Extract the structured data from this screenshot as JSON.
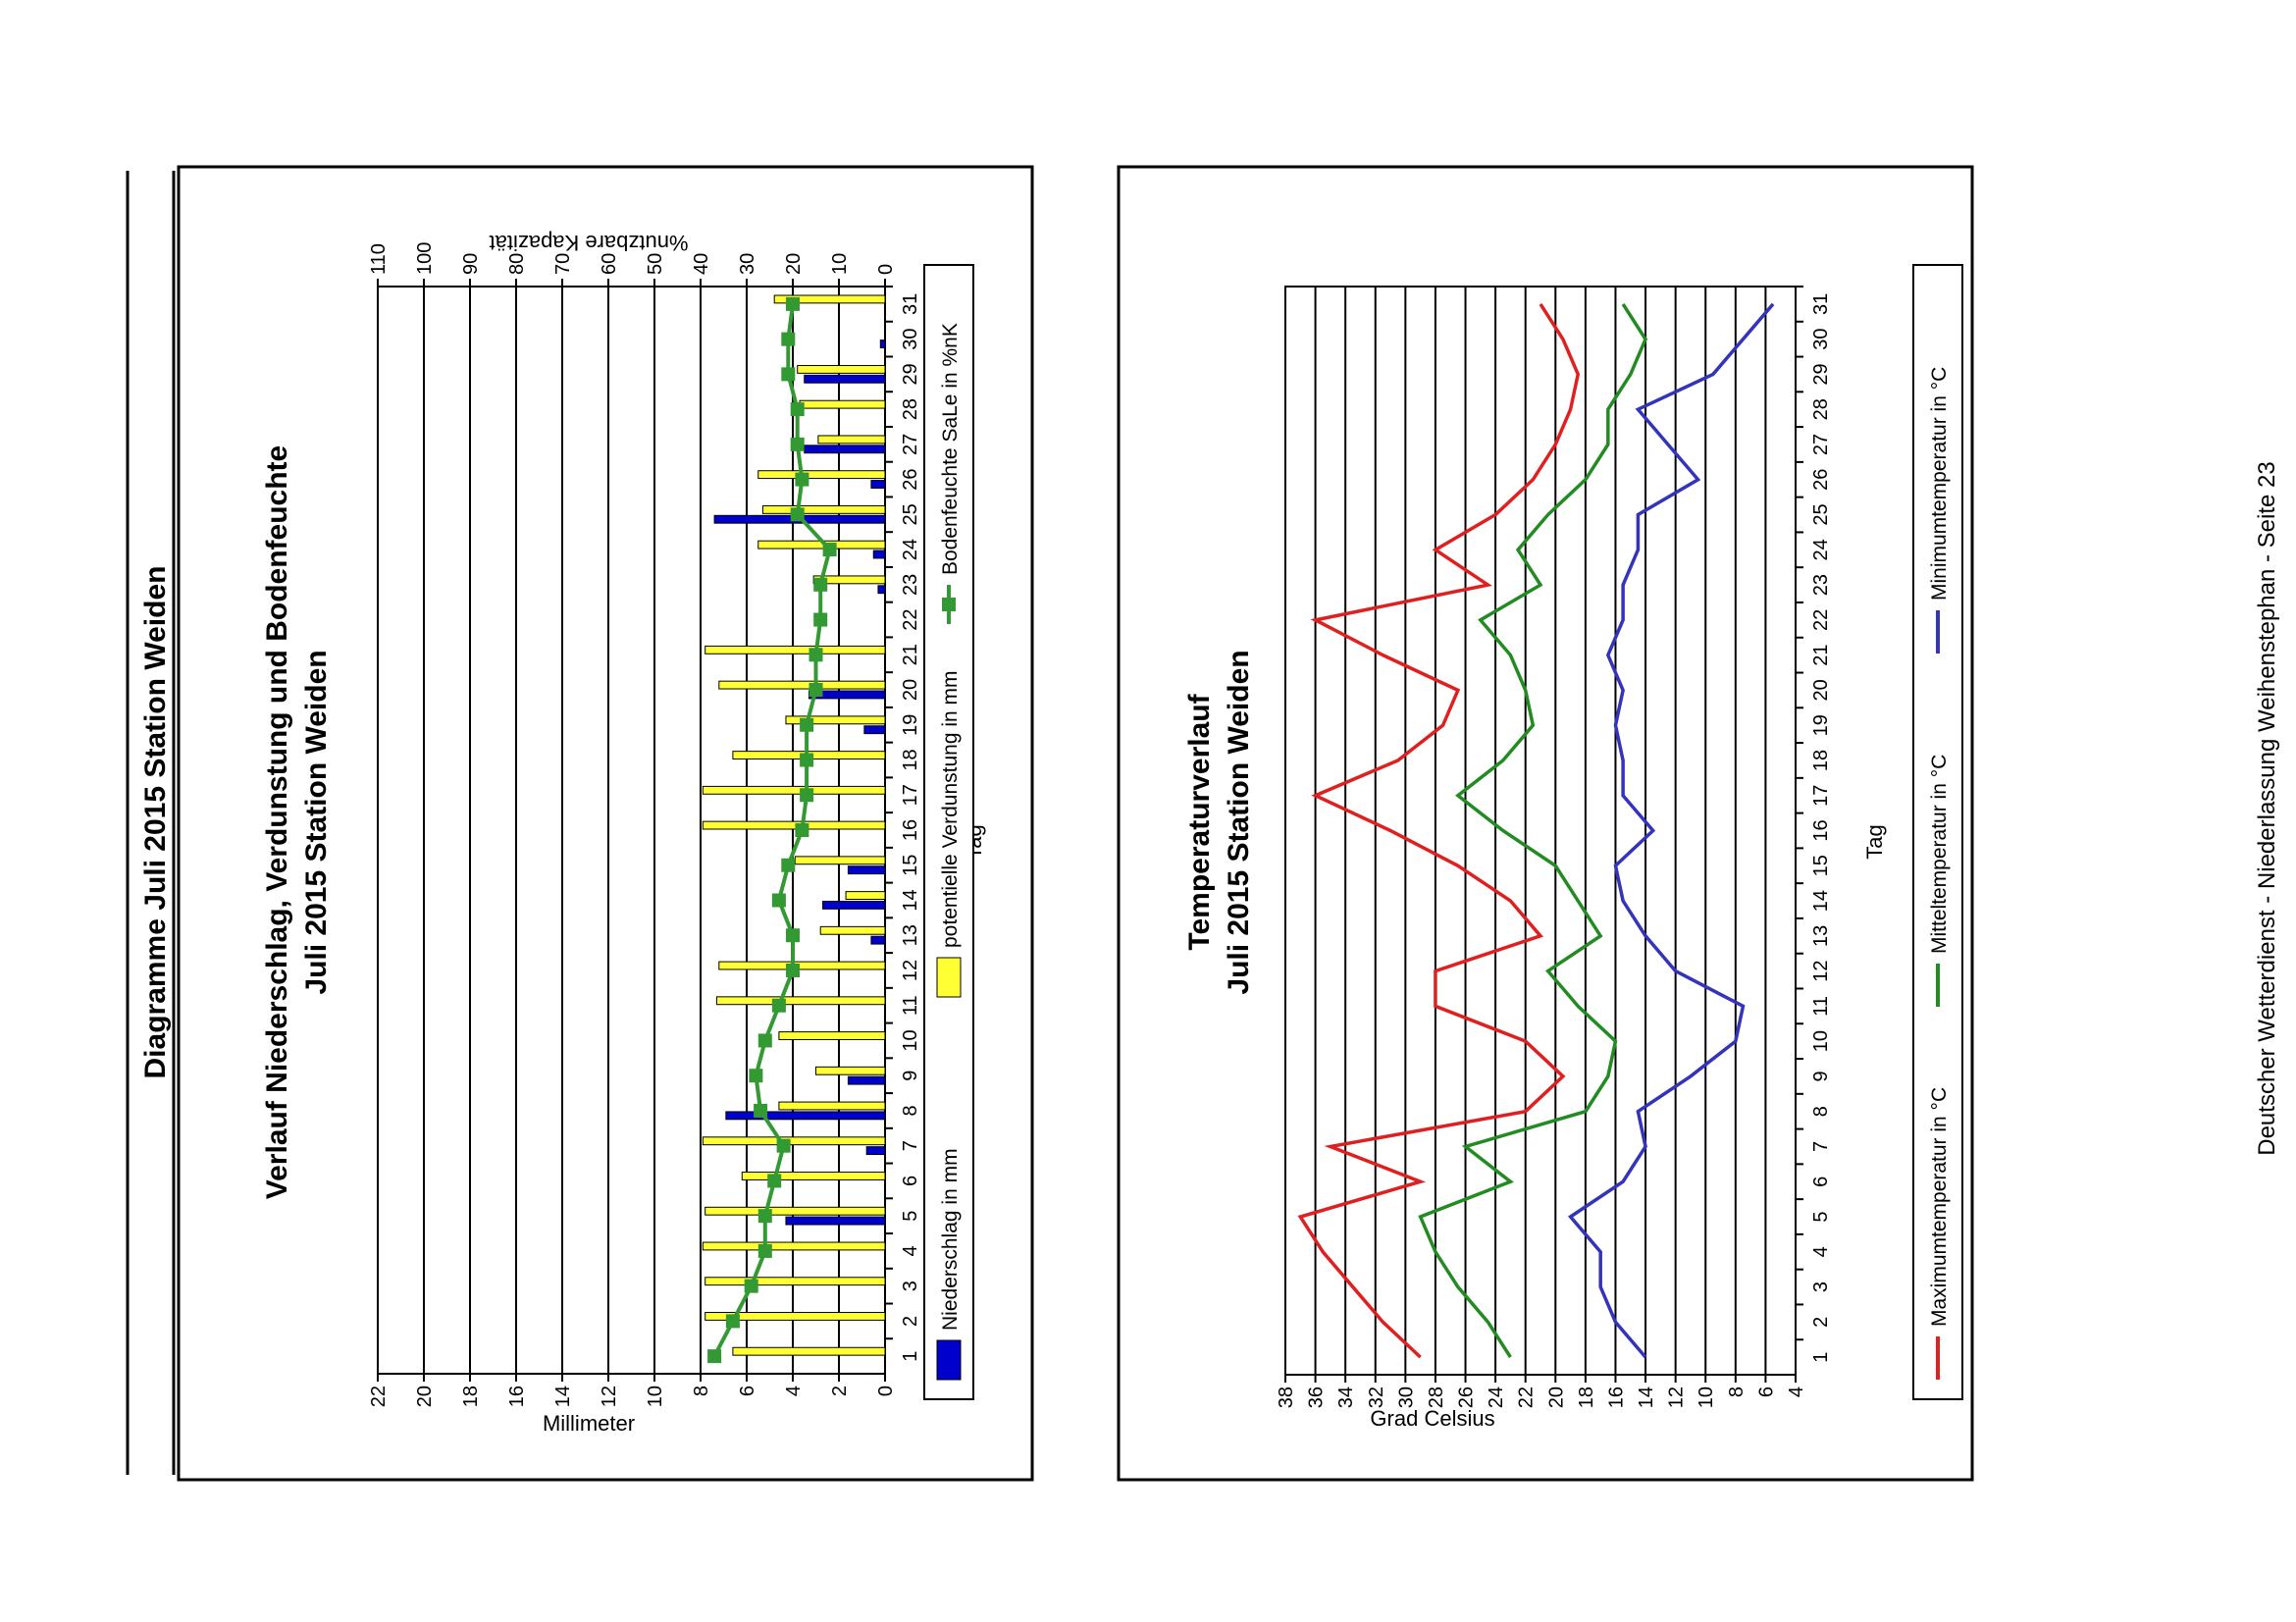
{
  "page": {
    "title": "Diagramme Juli 2015 Station Weiden",
    "footer": "Deutscher Wetterdienst - Niederlassung Weihenstephan - Seite 23"
  },
  "chart_data": [
    {
      "type": "bar",
      "title": "Verlauf Niederschlag, Verdunstung und Bodenfeuchte",
      "subtitle": "Juli 2015 Station Weiden",
      "xlabel": "Tag",
      "ylabel": "Millimeter",
      "y2label": "%nutzbare Kapazität",
      "ylim": [
        0,
        22
      ],
      "y2lim": [
        0,
        110
      ],
      "yticks": [
        "0",
        "2",
        "4",
        "6",
        "8",
        "10",
        "12",
        "14",
        "16",
        "18",
        "20",
        "22"
      ],
      "y2ticks": [
        "0",
        "10",
        "20",
        "30",
        "40",
        "50",
        "60",
        "70",
        "80",
        "90",
        "100",
        "110"
      ],
      "categories": [
        "1",
        "2",
        "3",
        "4",
        "5",
        "6",
        "7",
        "8",
        "9",
        "10",
        "11",
        "12",
        "13",
        "14",
        "15",
        "16",
        "17",
        "18",
        "19",
        "20",
        "21",
        "22",
        "23",
        "24",
        "25",
        "26",
        "27",
        "28",
        "29",
        "30",
        "31"
      ],
      "series": [
        {
          "name": "Niederschlag in mm",
          "kind": "bar",
          "color": "#0000cc",
          "values": [
            0,
            0,
            0,
            0,
            4.3,
            0,
            0.8,
            6.9,
            1.6,
            0,
            0,
            0,
            0.6,
            2.7,
            1.6,
            0,
            0,
            0,
            0.9,
            3.3,
            0,
            0,
            0.3,
            0.5,
            7.4,
            0.6,
            3.5,
            0,
            3.5,
            0.2,
            0
          ]
        },
        {
          "name": "potentielle Verdunstung in mm",
          "kind": "bar",
          "color": "#ffff33",
          "values": [
            6.6,
            7.8,
            7.8,
            7.9,
            7.8,
            6.2,
            7.9,
            4.6,
            3.0,
            4.6,
            7.3,
            7.2,
            2.8,
            1.7,
            3.9,
            7.9,
            7.9,
            6.6,
            4.3,
            7.2,
            7.8,
            0,
            3.1,
            5.5,
            5.3,
            5.5,
            2.9,
            3.7,
            3.8,
            0,
            4.8
          ]
        },
        {
          "name": "Bodenfeuchte SaLe in %nK",
          "kind": "line",
          "color": "#339933",
          "values": [
            37,
            33,
            29,
            26,
            26,
            24,
            22,
            27,
            28,
            26,
            23,
            20,
            20,
            23,
            21,
            18,
            17,
            17,
            17,
            15,
            15,
            14,
            14,
            12,
            19,
            18,
            19,
            19,
            21,
            21,
            20
          ]
        }
      ]
    },
    {
      "type": "line",
      "title": "Temperaturverlauf",
      "subtitle": "Juli 2015 Station Weiden",
      "xlabel": "Tag",
      "ylabel": "Grad Celsius",
      "ylim": [
        4,
        38
      ],
      "yticks": [
        "4",
        "6",
        "8",
        "10",
        "12",
        "14",
        "16",
        "18",
        "20",
        "22",
        "24",
        "26",
        "28",
        "30",
        "32",
        "34",
        "36",
        "38"
      ],
      "categories": [
        "1",
        "2",
        "3",
        "4",
        "5",
        "6",
        "7",
        "8",
        "9",
        "10",
        "11",
        "12",
        "13",
        "14",
        "15",
        "16",
        "17",
        "18",
        "19",
        "20",
        "21",
        "22",
        "23",
        "24",
        "25",
        "26",
        "27",
        "28",
        "29",
        "30",
        "31"
      ],
      "series": [
        {
          "name": "Maximumtemperatur in °C",
          "color": "#e02020",
          "values": [
            29.0,
            31.5,
            33.5,
            35.5,
            37.0,
            29.0,
            35.0,
            22.0,
            19.5,
            22.0,
            28.0,
            28.0,
            21.0,
            23.0,
            26.5,
            31.0,
            36.0,
            30.5,
            27.5,
            26.5,
            31.5,
            36.0,
            24.5,
            28.0,
            24.0,
            21.5,
            20.0,
            19.0,
            18.5,
            19.5,
            21.0
          ]
        },
        {
          "name": "Mitteltemperatur in °C",
          "color": "#228b22",
          "values": [
            23.0,
            24.5,
            26.5,
            28.0,
            29.0,
            23.0,
            26.0,
            18.0,
            16.5,
            16.0,
            18.5,
            20.5,
            17.0,
            18.5,
            20.0,
            23.5,
            26.5,
            23.5,
            21.5,
            22.0,
            23.0,
            25.0,
            21.0,
            22.5,
            20.5,
            18.0,
            16.5,
            16.5,
            15.0,
            14.0,
            15.5
          ]
        },
        {
          "name": "Minimumtemperatur in °C",
          "color": "#3333bb",
          "values": [
            14.0,
            16.0,
            17.0,
            17.0,
            19.0,
            15.5,
            14.0,
            14.5,
            11.0,
            8.0,
            7.5,
            12.0,
            14.0,
            15.5,
            16.0,
            13.5,
            15.5,
            15.5,
            16.0,
            15.5,
            16.5,
            15.5,
            15.5,
            14.5,
            14.5,
            10.5,
            12.5,
            14.5,
            9.5,
            7.5,
            5.5
          ]
        }
      ]
    }
  ]
}
